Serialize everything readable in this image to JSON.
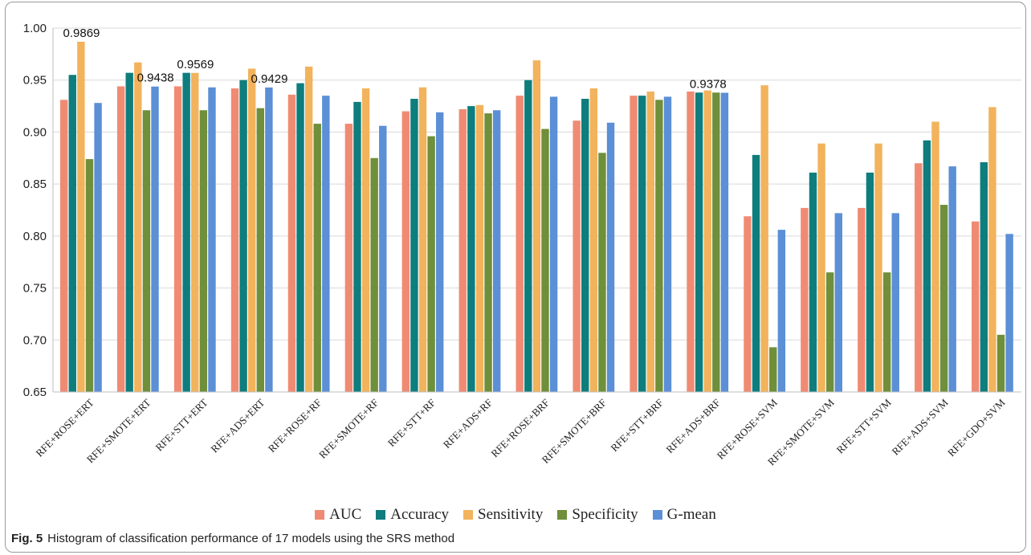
{
  "caption": {
    "label": "Fig. 5",
    "text": "Histogram of classification performance of 17 models using the SRS method"
  },
  "chart_data": {
    "type": "bar",
    "title": "",
    "xlabel": "",
    "ylabel": "",
    "ylim": [
      0.65,
      1.0
    ],
    "yticks": [
      "0.65",
      "0.70",
      "0.75",
      "0.80",
      "0.85",
      "0.90",
      "0.95",
      "1.00"
    ],
    "grid": "horizontal",
    "legend_position": "bottom",
    "categories": [
      "RFE+ROSE+ERT",
      "RFE+SMOTE+ERT",
      "RFE+STT+ERT",
      "RFE+ADS+ERT",
      "RFE+ROSE+RF",
      "RFE+SMOTE+RF",
      "RFE+STT+RF",
      "RFE+ADS+RF",
      "RFE+ROSE+BRF",
      "RFE+SMOTE+BRF",
      "RFE+STT+BRF",
      "RFE+ADS+BRF",
      "RFE+ROSE+SVM",
      "RFE+SMOTE+SVM",
      "RFE+STT+SVM",
      "RFE+ADS+SVM",
      "RFE+GDO+SVM"
    ],
    "series": [
      {
        "name": "AUC",
        "color": "#f08b73",
        "values": [
          0.931,
          0.944,
          0.944,
          0.942,
          0.936,
          0.908,
          0.92,
          0.922,
          0.935,
          0.911,
          0.935,
          0.939,
          0.819,
          0.827,
          0.827,
          0.87,
          0.814
        ]
      },
      {
        "name": "Accuracy",
        "color": "#0e7d7d",
        "values": [
          0.955,
          0.957,
          0.957,
          0.95,
          0.947,
          0.929,
          0.932,
          0.925,
          0.95,
          0.932,
          0.935,
          0.938,
          0.878,
          0.861,
          0.861,
          0.892,
          0.871
        ]
      },
      {
        "name": "Sensitivity",
        "color": "#f2b35c",
        "values": [
          0.9869,
          0.967,
          0.9569,
          0.961,
          0.963,
          0.942,
          0.943,
          0.926,
          0.969,
          0.942,
          0.939,
          0.94,
          0.945,
          0.889,
          0.889,
          0.91,
          0.924
        ]
      },
      {
        "name": "Specificity",
        "color": "#6f8f3a",
        "values": [
          0.874,
          0.921,
          0.921,
          0.923,
          0.908,
          0.875,
          0.896,
          0.918,
          0.903,
          0.88,
          0.931,
          0.938,
          0.693,
          0.765,
          0.765,
          0.83,
          0.705
        ]
      },
      {
        "name": "G-mean",
        "color": "#5b8fd6",
        "values": [
          0.928,
          0.9438,
          0.943,
          0.9429,
          0.935,
          0.906,
          0.919,
          0.921,
          0.934,
          0.909,
          0.934,
          0.9378,
          0.806,
          0.822,
          0.822,
          0.867,
          0.802
        ]
      }
    ],
    "annotations": [
      {
        "text": "0.9869",
        "category": 0,
        "value": 0.9869
      },
      {
        "text": "0.9438",
        "category": 1,
        "value": 0.9438
      },
      {
        "text": "0.9569",
        "category": 2,
        "value": 0.9569
      },
      {
        "text": "0.9429",
        "category": 3,
        "value": 0.9429
      },
      {
        "text": "0.9378",
        "category": 11,
        "value": 0.9378
      }
    ]
  }
}
